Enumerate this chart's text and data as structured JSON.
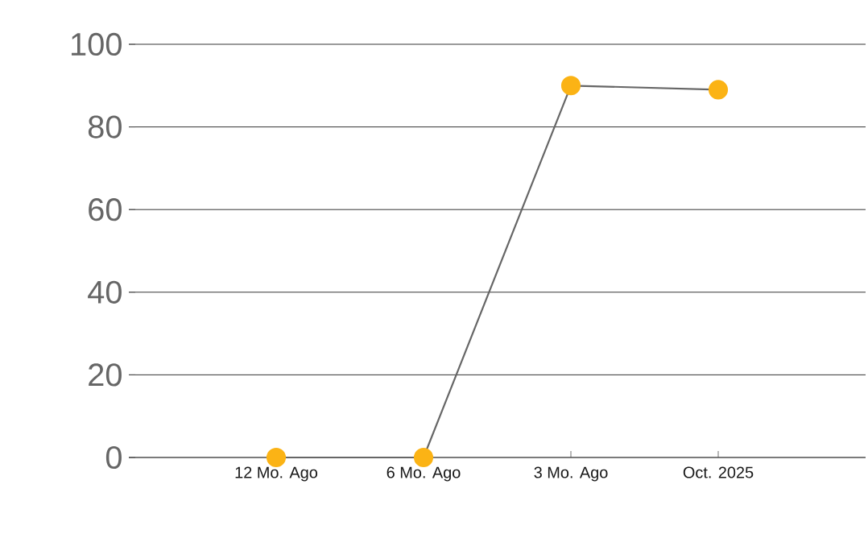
{
  "chart_data": {
    "type": "line",
    "categories": [
      "12 Mo. Ago",
      "6 Mo. Ago",
      "3 Mo. Ago",
      "Oct. 2025"
    ],
    "series": [
      {
        "color": "#fbb315",
        "values": [
          0,
          0,
          90,
          89
        ]
      }
    ],
    "ylim": [
      0,
      100
    ],
    "yticks": [
      0,
      20,
      40,
      60,
      80,
      100
    ],
    "grid": "y",
    "marker": "circle"
  }
}
